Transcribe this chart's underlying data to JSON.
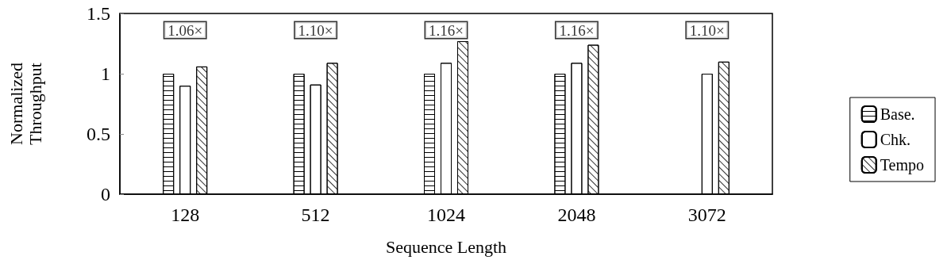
{
  "chart_data": {
    "type": "bar",
    "xlabel": "Sequence Length",
    "ylabel": "Normalized\nThroughput",
    "categories": [
      "128",
      "512",
      "1024",
      "2048",
      "3072"
    ],
    "series": [
      {
        "name": "Base.",
        "color": "#ffffff",
        "values": [
          1.0,
          1.0,
          1.0,
          1.0,
          null
        ]
      },
      {
        "name": "Chk.",
        "color": "#ffffff",
        "values": [
          0.9,
          0.91,
          1.09,
          1.09,
          1.0
        ]
      },
      {
        "name": "Tempo",
        "color": "#ffffff",
        "values": [
          1.06,
          1.09,
          1.27,
          1.24,
          1.1
        ]
      }
    ],
    "ylim": [
      0,
      1.5
    ],
    "yticks": [
      0,
      0.5,
      1,
      1.5
    ],
    "grid": false,
    "legend": "right",
    "annotations": [
      "1.06×",
      "1.10×",
      "1.16×",
      "1.16×",
      "1.10×"
    ]
  }
}
